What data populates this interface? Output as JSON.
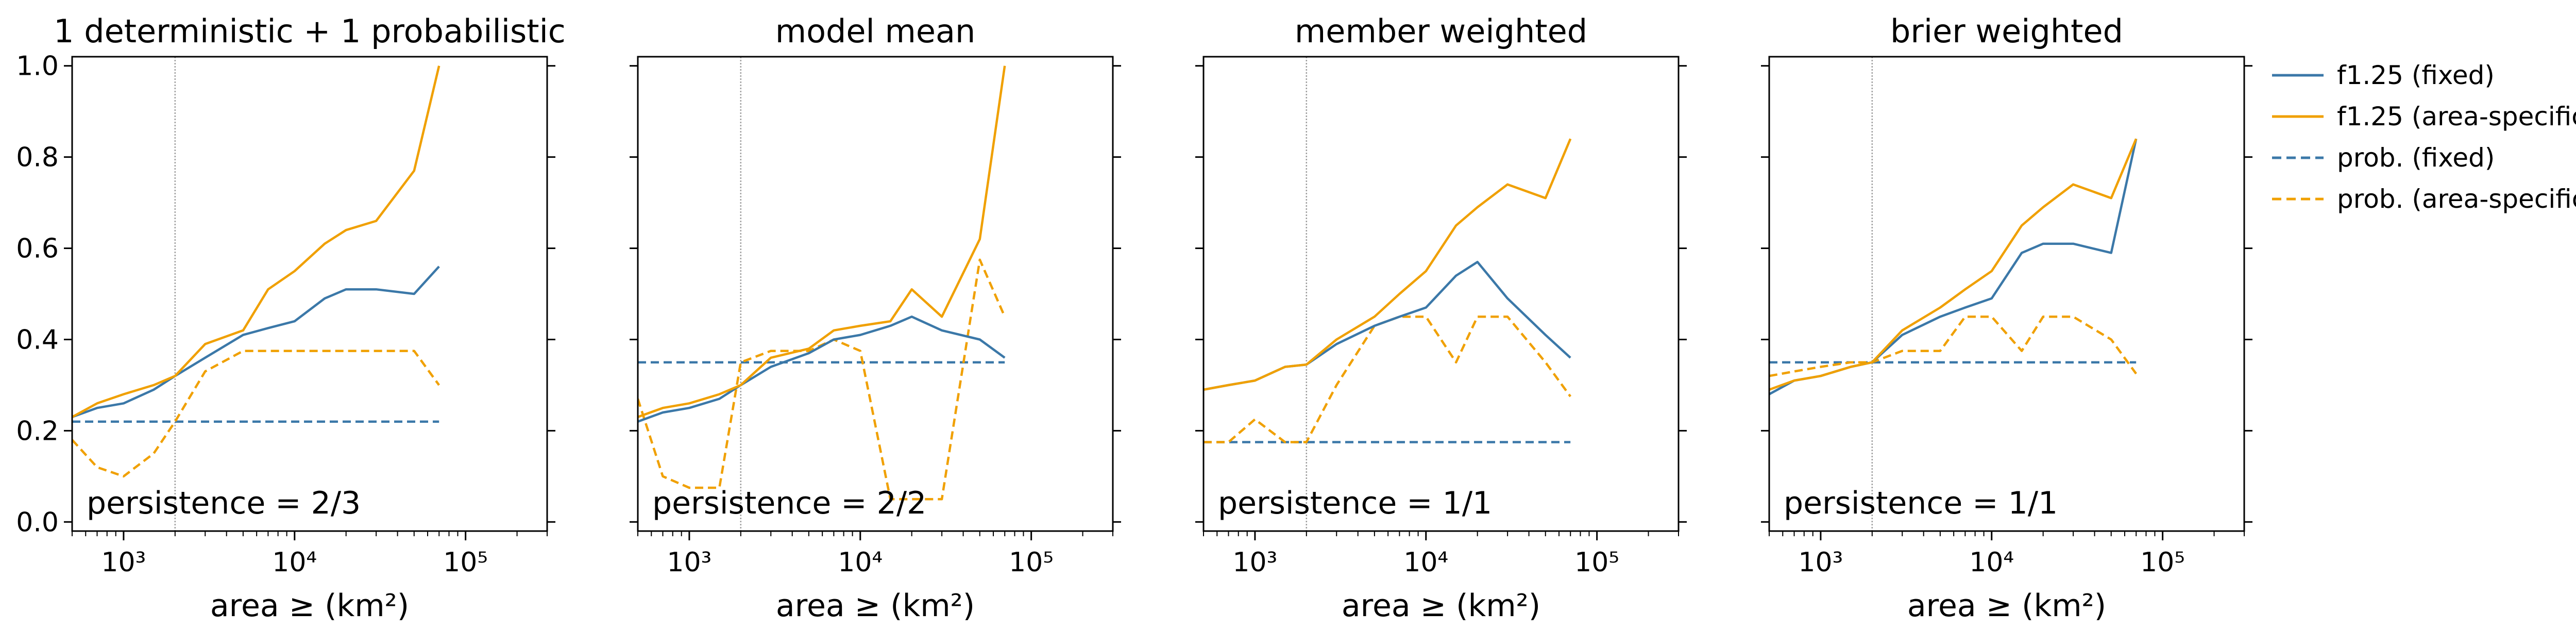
{
  "colors": {
    "fixed": "#3b78a8",
    "area_specific": "#f0a000",
    "vline": "#a0a0a0",
    "axis": "#000000"
  },
  "legend": [
    {
      "label": "f1.25 (fixed)",
      "color": "#3b78a8",
      "style": "solid"
    },
    {
      "label": "f1.25 (area-specific)",
      "color": "#f0a000",
      "style": "solid"
    },
    {
      "label": "prob. (fixed)",
      "color": "#3b78a8",
      "style": "dashed"
    },
    {
      "label": "prob. (area-specific)",
      "color": "#f0a000",
      "style": "dashed"
    }
  ],
  "chart_data": [
    {
      "type": "line",
      "title": "1 deterministic + 1 probabilistic",
      "xlabel": "area ≥ (km²)",
      "xscale": "log",
      "xlim": [
        500,
        300000
      ],
      "ylim": [
        -0.02,
        1.02
      ],
      "yticks": [
        "0.0",
        "0.2",
        "0.4",
        "0.6",
        "0.8",
        "1.0"
      ],
      "xticks": [
        "10³",
        "10⁴",
        "10⁵"
      ],
      "vline": 2000,
      "annotation": "persistence = 2/3",
      "x": [
        500,
        700,
        1000,
        1500,
        2000,
        3000,
        5000,
        7000,
        10000,
        15000,
        20000,
        30000,
        50000,
        70000
      ],
      "series": [
        {
          "name": "f1.25 (fixed)",
          "style": "solid",
          "values": [
            0.23,
            0.25,
            0.26,
            0.29,
            0.32,
            0.36,
            0.41,
            0.425,
            0.44,
            0.49,
            0.51,
            0.51,
            0.5,
            0.56
          ]
        },
        {
          "name": "f1.25 (area-specific)",
          "style": "solid",
          "values": [
            0.23,
            0.26,
            0.28,
            0.3,
            0.32,
            0.39,
            0.42,
            0.51,
            0.55,
            0.61,
            0.64,
            0.66,
            0.77,
            1.0
          ]
        },
        {
          "name": "prob. (fixed)",
          "style": "dashed",
          "values": [
            0.22,
            0.22,
            0.22,
            0.22,
            0.22,
            0.22,
            0.22,
            0.22,
            0.22,
            0.22,
            0.22,
            0.22,
            0.22,
            0.22
          ]
        },
        {
          "name": "prob. (area-specific)",
          "style": "dashed",
          "values": [
            0.18,
            0.12,
            0.1,
            0.15,
            0.22,
            0.33,
            0.375,
            0.375,
            0.375,
            0.375,
            0.375,
            0.375,
            0.375,
            0.3
          ]
        }
      ]
    },
    {
      "type": "line",
      "title": "model mean",
      "xlabel": "area ≥ (km²)",
      "xscale": "log",
      "xlim": [
        500,
        300000
      ],
      "ylim": [
        -0.02,
        1.02
      ],
      "yticks": [
        "0.0",
        "0.2",
        "0.4",
        "0.6",
        "0.8",
        "1.0"
      ],
      "xticks": [
        "10³",
        "10⁴",
        "10⁵"
      ],
      "vline": 2000,
      "annotation": "persistence = 2/2",
      "x": [
        500,
        700,
        1000,
        1500,
        2000,
        3000,
        5000,
        7000,
        10000,
        15000,
        20000,
        30000,
        50000,
        70000
      ],
      "series": [
        {
          "name": "f1.25 (fixed)",
          "style": "solid",
          "values": [
            0.22,
            0.24,
            0.25,
            0.27,
            0.3,
            0.34,
            0.37,
            0.4,
            0.41,
            0.43,
            0.45,
            0.42,
            0.4,
            0.36
          ]
        },
        {
          "name": "f1.25 (area-specific)",
          "style": "solid",
          "values": [
            0.23,
            0.25,
            0.26,
            0.28,
            0.3,
            0.36,
            0.38,
            0.42,
            0.43,
            0.44,
            0.51,
            0.45,
            0.62,
            1.0
          ]
        },
        {
          "name": "prob. (fixed)",
          "style": "dashed",
          "values": [
            0.35,
            0.35,
            0.35,
            0.35,
            0.35,
            0.35,
            0.35,
            0.35,
            0.35,
            0.35,
            0.35,
            0.35,
            0.35,
            0.35
          ]
        },
        {
          "name": "prob. (area-specific)",
          "style": "dashed",
          "values": [
            0.27,
            0.1,
            0.075,
            0.075,
            0.35,
            0.375,
            0.375,
            0.4,
            0.375,
            0.05,
            0.05,
            0.05,
            0.575,
            0.45
          ]
        }
      ]
    },
    {
      "type": "line",
      "title": "member weighted",
      "xlabel": "area ≥ (km²)",
      "xscale": "log",
      "xlim": [
        500,
        300000
      ],
      "ylim": [
        -0.02,
        1.02
      ],
      "yticks": [
        "0.0",
        "0.2",
        "0.4",
        "0.6",
        "0.8",
        "1.0"
      ],
      "xticks": [
        "10³",
        "10⁴",
        "10⁵"
      ],
      "vline": 2000,
      "annotation": "persistence = 1/1",
      "x": [
        500,
        700,
        1000,
        1500,
        2000,
        3000,
        5000,
        7000,
        10000,
        15000,
        20000,
        30000,
        50000,
        70000
      ],
      "series": [
        {
          "name": "f1.25 (fixed)",
          "style": "solid",
          "values": [
            0.29,
            0.3,
            0.31,
            0.34,
            0.345,
            0.39,
            0.43,
            0.45,
            0.47,
            0.54,
            0.57,
            0.49,
            0.41,
            0.36
          ]
        },
        {
          "name": "f1.25 (area-specific)",
          "style": "solid",
          "values": [
            0.29,
            0.3,
            0.31,
            0.34,
            0.345,
            0.4,
            0.45,
            0.5,
            0.55,
            0.65,
            0.69,
            0.74,
            0.71,
            0.84
          ]
        },
        {
          "name": "prob. (fixed)",
          "style": "dashed",
          "values": [
            0.175,
            0.175,
            0.175,
            0.175,
            0.175,
            0.175,
            0.175,
            0.175,
            0.175,
            0.175,
            0.175,
            0.175,
            0.175,
            0.175
          ]
        },
        {
          "name": "prob. (area-specific)",
          "style": "dashed",
          "values": [
            0.175,
            0.175,
            0.225,
            0.175,
            0.175,
            0.3,
            0.43,
            0.45,
            0.45,
            0.35,
            0.45,
            0.45,
            0.35,
            0.275
          ]
        }
      ]
    },
    {
      "type": "line",
      "title": "brier weighted",
      "xlabel": "area ≥ (km²)",
      "xscale": "log",
      "xlim": [
        500,
        300000
      ],
      "ylim": [
        -0.02,
        1.02
      ],
      "yticks": [
        "0.0",
        "0.2",
        "0.4",
        "0.6",
        "0.8",
        "1.0"
      ],
      "xticks": [
        "10³",
        "10⁴",
        "10⁵"
      ],
      "vline": 2000,
      "annotation": "persistence = 1/1",
      "x": [
        500,
        700,
        1000,
        1500,
        2000,
        3000,
        5000,
        7000,
        10000,
        15000,
        20000,
        30000,
        50000,
        70000
      ],
      "series": [
        {
          "name": "f1.25 (fixed)",
          "style": "solid",
          "values": [
            0.28,
            0.31,
            0.32,
            0.34,
            0.35,
            0.41,
            0.45,
            0.47,
            0.49,
            0.59,
            0.61,
            0.61,
            0.59,
            0.84
          ]
        },
        {
          "name": "f1.25 (area-specific)",
          "style": "solid",
          "values": [
            0.29,
            0.31,
            0.32,
            0.34,
            0.35,
            0.42,
            0.47,
            0.51,
            0.55,
            0.65,
            0.69,
            0.74,
            0.71,
            0.84
          ]
        },
        {
          "name": "prob. (fixed)",
          "style": "dashed",
          "values": [
            0.35,
            0.35,
            0.35,
            0.35,
            0.35,
            0.35,
            0.35,
            0.35,
            0.35,
            0.35,
            0.35,
            0.35,
            0.35,
            0.35
          ]
        },
        {
          "name": "prob. (area-specific)",
          "style": "dashed",
          "values": [
            0.32,
            0.33,
            0.34,
            0.35,
            0.35,
            0.375,
            0.375,
            0.45,
            0.45,
            0.375,
            0.45,
            0.45,
            0.4,
            0.325
          ]
        }
      ]
    }
  ]
}
